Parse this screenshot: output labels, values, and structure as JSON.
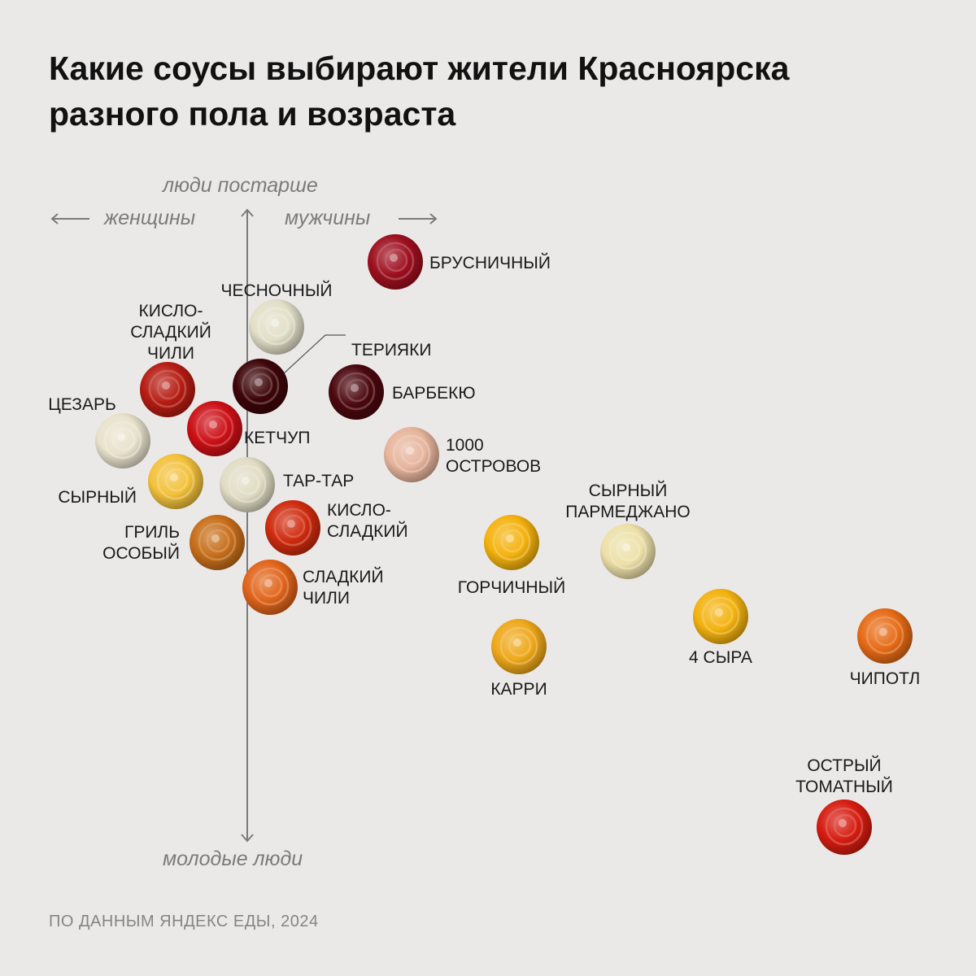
{
  "title": {
    "line1": "Какие соусы выбирают жители Красноярска",
    "line2": "разного пола и возраста"
  },
  "axes": {
    "top": "люди постарше",
    "bottom": "молодые люди",
    "left": "женщины",
    "right": "мужчины"
  },
  "footer": "ПО ДАННЫМ ЯНДЕКС ЕДЫ, 2024",
  "chart_data": {
    "type": "scatter",
    "x_axis_meaning": "женщины ← → мужчины",
    "y_axis_meaning": "молодые люди ↓ ↑ люди постарше",
    "x_range": [
      -245,
      835
    ],
    "y_range": [
      -745,
      40
    ],
    "points": [
      {
        "name": "БРУСНИЧНЫЙ",
        "x": 182,
        "y": 0,
        "color": "#9e0f1f"
      },
      {
        "name": "ЧЕСНОЧНЫЙ",
        "x": 36,
        "y": -80,
        "color": "#e2dfc8"
      },
      {
        "name": "ТЕРИЯКИ",
        "x": 16,
        "y": -153,
        "color": "#3d0509"
      },
      {
        "name": "КИСЛО-СЛАДКИЙ ЧИЛИ",
        "x": -98,
        "y": -157,
        "color": "#b61c12"
      },
      {
        "name": "БАРБЕКЮ",
        "x": 134,
        "y": -160,
        "color": "#4b070e"
      },
      {
        "name": "ЦЕЗАРЬ",
        "x": -153,
        "y": -220,
        "color": "#e8e2cc"
      },
      {
        "name": "КЕТЧУП",
        "x": -40,
        "y": -205,
        "color": "#cc1016"
      },
      {
        "name": "1000 ОСТРОВОВ",
        "x": 202,
        "y": -237,
        "color": "#e7b59d"
      },
      {
        "name": "СЫРНЫЙ",
        "x": -88,
        "y": -270,
        "color": "#f3c13c"
      },
      {
        "name": "ТАР-ТАР",
        "x": 0,
        "y": -274,
        "color": "#e0dcc4"
      },
      {
        "name": "ГРИЛЬ ОСОБЫЙ",
        "x": -37,
        "y": -345,
        "color": "#c76e1a"
      },
      {
        "name": "КИСЛО-СЛАДКИЙ",
        "x": 56,
        "y": -327,
        "color": "#cf2b0e"
      },
      {
        "name": "СЛАДКИЙ ЧИЛИ",
        "x": 28,
        "y": -400,
        "color": "#e1641a"
      },
      {
        "name": "ГОРЧИЧНЫЙ",
        "x": 325,
        "y": -345,
        "color": "#f4b20e"
      },
      {
        "name": "СЫРНЫЙ ПАРМЕДЖАНО",
        "x": 468,
        "y": -356,
        "color": "#ede0a9"
      },
      {
        "name": "КАРРИ",
        "x": 334,
        "y": -473,
        "color": "#eea81a"
      },
      {
        "name": "4 СЫРА",
        "x": 582,
        "y": -436,
        "color": "#f3b20f"
      },
      {
        "name": "ЧИПОТЛ",
        "x": 784,
        "y": -460,
        "color": "#e66b16"
      },
      {
        "name": "ОСТРЫЙ ТОМАТНЫЙ",
        "x": 734,
        "y": -695,
        "color": "#d61c10"
      }
    ]
  }
}
